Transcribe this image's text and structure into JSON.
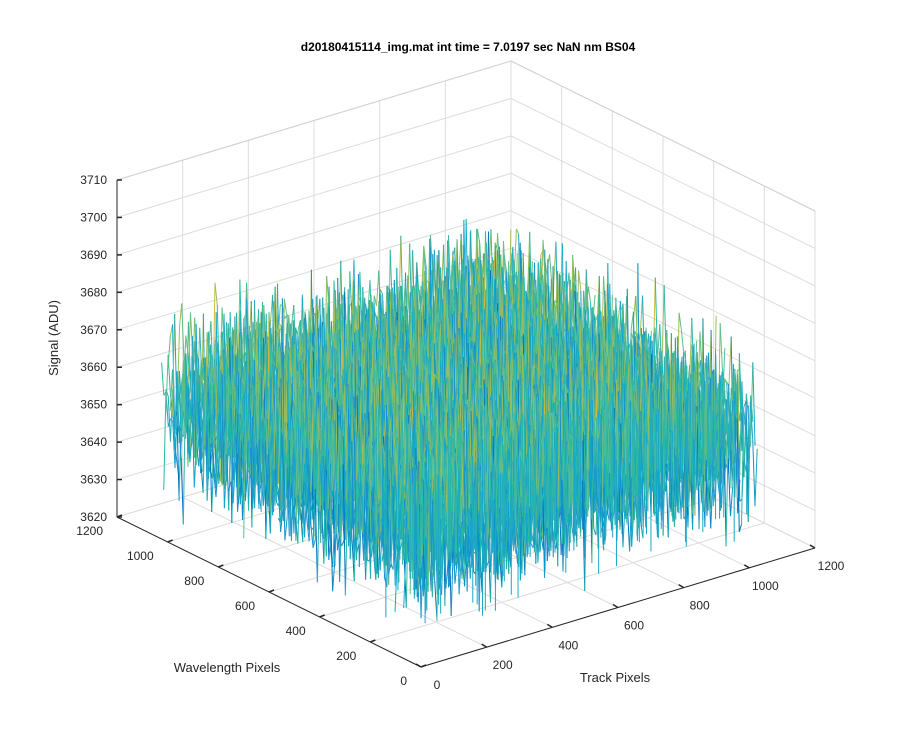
{
  "chart_data": {
    "type": "surface",
    "title": "d20180415114_img.mat int time = 7.0197 sec  NaN nm BS04",
    "xlabel": "Track Pixels",
    "ylabel": "Wavelength Pixels",
    "zlabel": "Signal (ADU)",
    "xlim": [
      0,
      1200
    ],
    "ylim": [
      0,
      1200
    ],
    "zlim": [
      3620,
      3710
    ],
    "xticks": [
      "0",
      "200",
      "400",
      "600",
      "800",
      "1000",
      "1200"
    ],
    "yticks": [
      "0",
      "200",
      "400",
      "600",
      "800",
      "1000",
      "1200"
    ],
    "zticks": [
      "3620",
      "3630",
      "3640",
      "3650",
      "3660",
      "3670",
      "3680",
      "3690",
      "3700",
      "3710"
    ],
    "grid": true,
    "colormap": [
      "#0072bd",
      "#1591cc",
      "#19a7c7",
      "#2cb7a8",
      "#5fbd8c",
      "#9bbd5b",
      "#d1bb3a",
      "#f2c733"
    ],
    "surface_summary": {
      "x_extent": [
        0,
        1024
      ],
      "y_extent": [
        0,
        1024
      ],
      "mean_signal": 3656,
      "noise_range": [
        3625,
        3705
      ]
    }
  }
}
